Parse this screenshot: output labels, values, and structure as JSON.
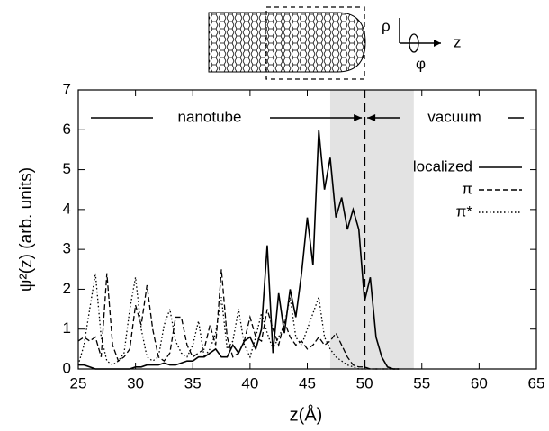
{
  "chart_data": {
    "type": "line",
    "diagram_labels": [
      "ρ",
      "z",
      "φ"
    ],
    "annotations": [
      "nanotube",
      "vacuum"
    ],
    "x_label": "z(Å)",
    "y_label": "ψ²(z)  (arb. units)",
    "x": [
      25,
      25.5,
      26,
      26.5,
      27,
      27.5,
      28,
      28.5,
      29,
      29.5,
      30,
      30.5,
      31,
      31.5,
      32,
      32.5,
      33,
      33.5,
      34,
      34.5,
      35,
      35.5,
      36,
      36.5,
      37,
      37.5,
      38,
      38.5,
      39,
      39.5,
      40,
      40.5,
      41,
      41.5,
      42,
      42.5,
      43,
      43.5,
      44,
      44.5,
      45,
      45.5,
      46,
      46.5,
      47,
      47.5,
      48,
      48.5,
      49,
      49.5,
      50,
      50.5,
      51,
      51.5,
      52,
      52.5,
      53
    ],
    "series": [
      {
        "name": "localized",
        "color": "#000000",
        "dash": "solid",
        "values": [
          0.1,
          0.1,
          0.05,
          0,
          0,
          0,
          0,
          0,
          0,
          0,
          0.05,
          0.05,
          0.1,
          0.1,
          0.1,
          0.15,
          0.1,
          0.1,
          0.15,
          0.2,
          0.2,
          0.3,
          0.3,
          0.4,
          0.5,
          0.3,
          0.3,
          0.6,
          0.4,
          0.7,
          0.8,
          0.5,
          1.0,
          3.1,
          0.4,
          1.9,
          0.9,
          2.0,
          1.3,
          2.4,
          3.8,
          2.6,
          6.0,
          4.5,
          5.3,
          3.8,
          4.3,
          3.5,
          4.0,
          3.5,
          1.7,
          2.3,
          0.8,
          0.3,
          0.05,
          0,
          0
        ]
      },
      {
        "name": "π",
        "color": "#000000",
        "dash": "dashed",
        "values": [
          0.7,
          0.8,
          0.7,
          0.8,
          0.3,
          2.4,
          0.6,
          0.2,
          0.3,
          0.5,
          1.6,
          1.1,
          2.1,
          1.0,
          0.3,
          0.2,
          0.4,
          1.3,
          1.3,
          0.6,
          0.3,
          0.4,
          0.5,
          1.1,
          0.6,
          2.5,
          0.8,
          0.3,
          0.4,
          0.7,
          1.3,
          0.8,
          0.7,
          1.5,
          1.0,
          0.6,
          1.2,
          0.8,
          0.6,
          0.7,
          0.5,
          0.6,
          0.8,
          0.6,
          0.7,
          0.9,
          0.6,
          0.3,
          0.1,
          0.05,
          0.05,
          0,
          0,
          0,
          0,
          0,
          0
        ]
      },
      {
        "name": "π*",
        "color": "#000000",
        "dash": "dotted",
        "values": [
          0.1,
          0.6,
          1.5,
          2.4,
          0.8,
          0.2,
          0.1,
          0.2,
          0.4,
          1.5,
          2.3,
          1.0,
          0.3,
          0.2,
          0.3,
          1.1,
          1.5,
          0.7,
          0.4,
          0.3,
          0.6,
          1.2,
          0.3,
          0.5,
          0.9,
          1.8,
          0.5,
          0.7,
          1.5,
          0.6,
          0.3,
          0.8,
          1.4,
          0.9,
          0.5,
          0.8,
          1.1,
          1.8,
          0.8,
          0.6,
          1.0,
          1.4,
          1.8,
          0.8,
          0.5,
          0.3,
          0.2,
          0.1,
          0.05,
          0,
          0,
          0,
          0,
          0,
          0,
          0,
          0
        ]
      }
    ],
    "shaded_xrange": [
      47,
      54.3
    ],
    "vline": 50,
    "xlim": [
      25,
      65
    ],
    "xticks": [
      25,
      30,
      35,
      40,
      45,
      50,
      55,
      60,
      65
    ],
    "ylim": [
      0,
      7
    ],
    "yticks": [
      0,
      1,
      2,
      3,
      4,
      5,
      6,
      7
    ],
    "legend": "upper right"
  }
}
